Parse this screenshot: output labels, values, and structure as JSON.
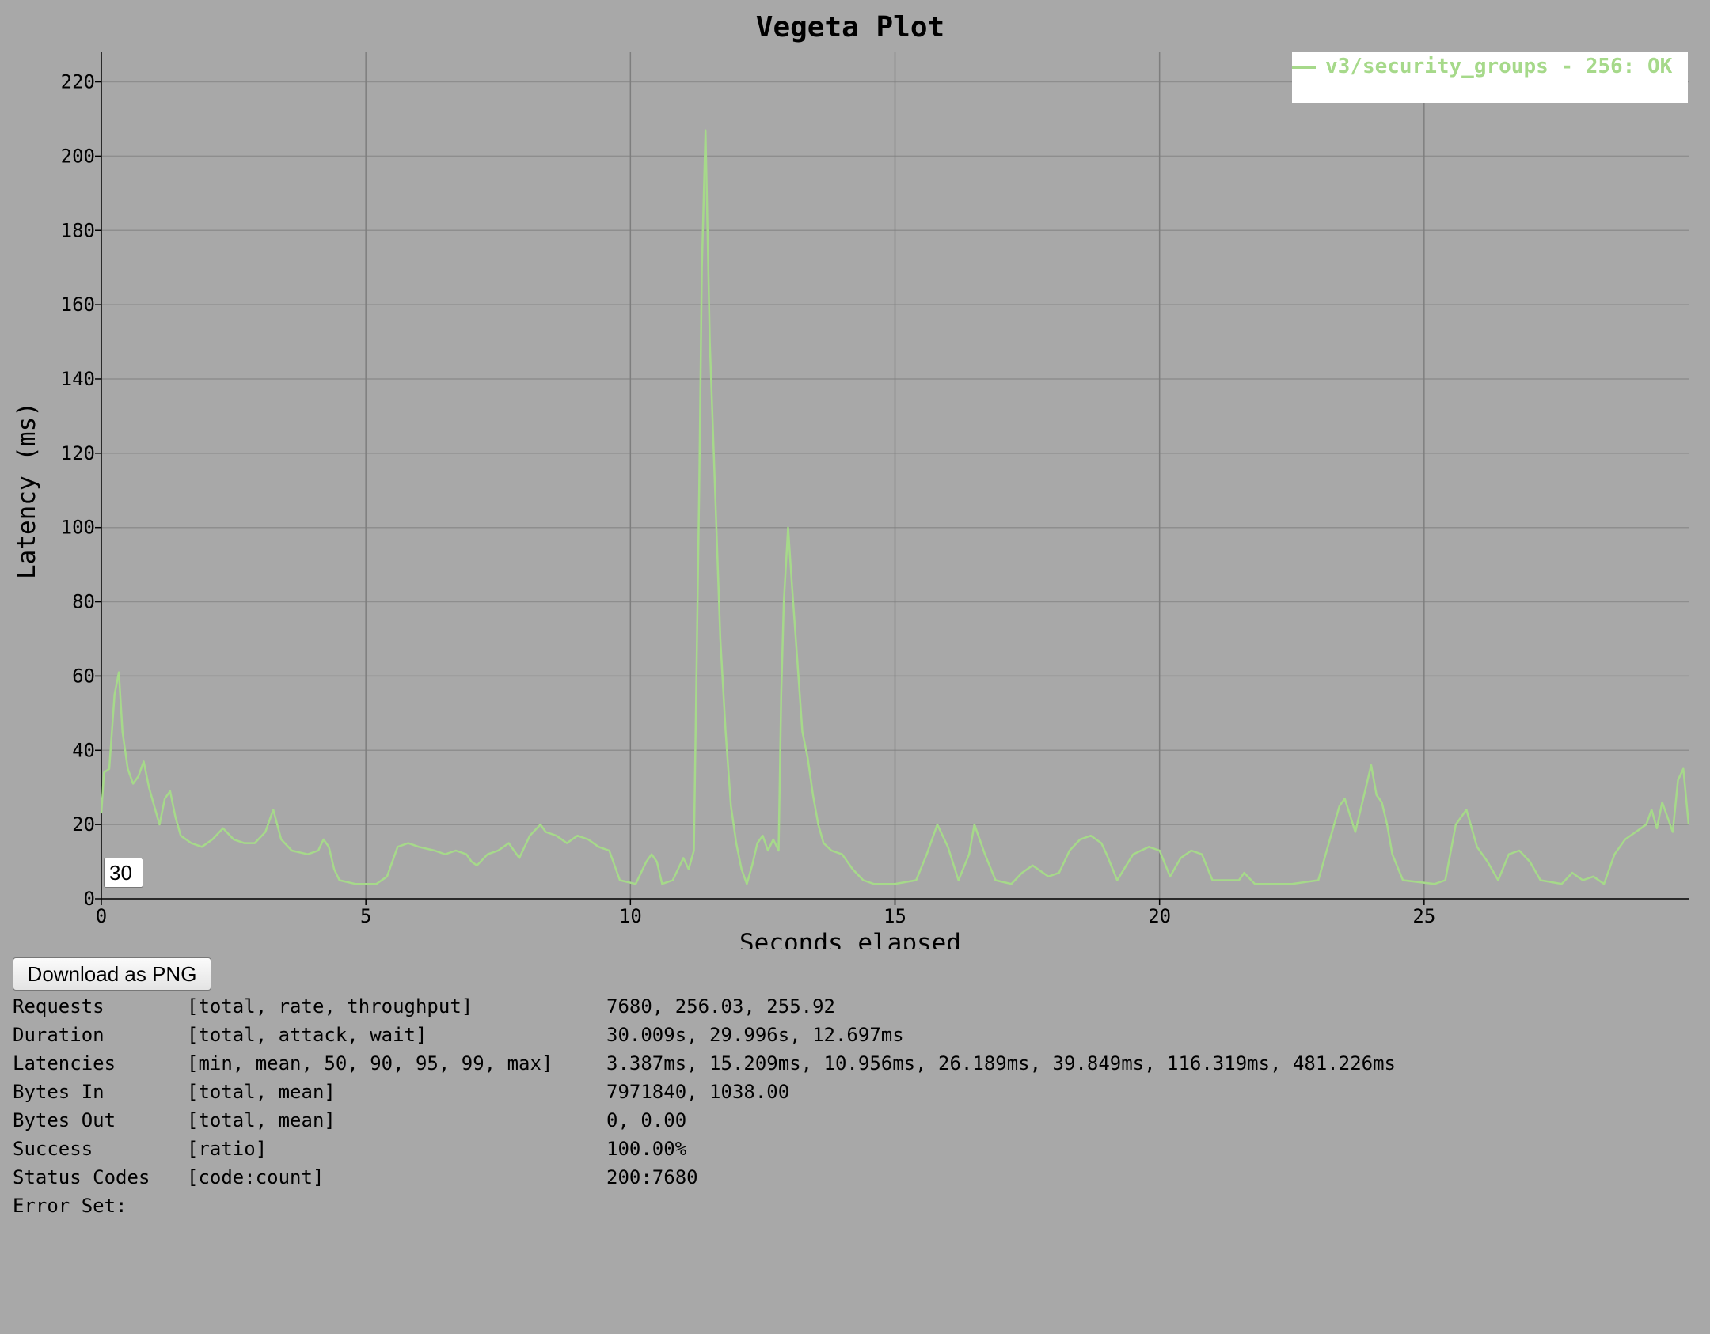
{
  "chart_data": {
    "type": "line",
    "title": "Vegeta Plot",
    "xlabel": "Seconds elapsed",
    "ylabel": "Latency (ms)",
    "xlim": [
      0,
      30
    ],
    "ylim": [
      0,
      228
    ],
    "x_ticks": [
      0,
      5,
      10,
      15,
      20,
      25
    ],
    "y_ticks": [
      0,
      20,
      40,
      60,
      80,
      100,
      120,
      140,
      160,
      180,
      200,
      220
    ],
    "grid": true,
    "legend_position": "top-right",
    "series": [
      {
        "name": "v3/security_groups - 256: OK",
        "color": "#a6d98a",
        "points": [
          [
            0.0,
            23
          ],
          [
            0.05,
            34
          ],
          [
            0.15,
            35
          ],
          [
            0.25,
            55
          ],
          [
            0.33,
            61
          ],
          [
            0.4,
            45
          ],
          [
            0.5,
            35
          ],
          [
            0.6,
            31
          ],
          [
            0.7,
            33
          ],
          [
            0.8,
            37
          ],
          [
            0.9,
            30
          ],
          [
            1.0,
            25
          ],
          [
            1.1,
            20
          ],
          [
            1.2,
            27
          ],
          [
            1.3,
            29
          ],
          [
            1.4,
            22
          ],
          [
            1.5,
            17
          ],
          [
            1.7,
            15
          ],
          [
            1.9,
            14
          ],
          [
            2.1,
            16
          ],
          [
            2.3,
            19
          ],
          [
            2.5,
            16
          ],
          [
            2.7,
            15
          ],
          [
            2.9,
            15
          ],
          [
            3.1,
            18
          ],
          [
            3.25,
            24
          ],
          [
            3.4,
            16
          ],
          [
            3.6,
            13
          ],
          [
            3.9,
            12
          ],
          [
            4.1,
            13
          ],
          [
            4.2,
            16
          ],
          [
            4.3,
            14
          ],
          [
            4.4,
            8
          ],
          [
            4.5,
            5
          ],
          [
            4.8,
            4
          ],
          [
            5.2,
            4
          ],
          [
            5.4,
            6
          ],
          [
            5.6,
            14
          ],
          [
            5.8,
            15
          ],
          [
            6.0,
            14
          ],
          [
            6.3,
            13
          ],
          [
            6.5,
            12
          ],
          [
            6.7,
            13
          ],
          [
            6.9,
            12
          ],
          [
            7.0,
            10
          ],
          [
            7.1,
            9
          ],
          [
            7.3,
            12
          ],
          [
            7.5,
            13
          ],
          [
            7.7,
            15
          ],
          [
            7.9,
            11
          ],
          [
            8.1,
            17
          ],
          [
            8.3,
            20
          ],
          [
            8.4,
            18
          ],
          [
            8.6,
            17
          ],
          [
            8.8,
            15
          ],
          [
            9.0,
            17
          ],
          [
            9.2,
            16
          ],
          [
            9.4,
            14
          ],
          [
            9.6,
            13
          ],
          [
            9.8,
            5
          ],
          [
            10.1,
            4
          ],
          [
            10.3,
            10
          ],
          [
            10.4,
            12
          ],
          [
            10.5,
            10
          ],
          [
            10.6,
            4
          ],
          [
            10.8,
            5
          ],
          [
            11.0,
            11
          ],
          [
            11.1,
            8
          ],
          [
            11.2,
            13
          ],
          [
            11.3,
            110
          ],
          [
            11.35,
            170
          ],
          [
            11.42,
            207
          ],
          [
            11.5,
            150
          ],
          [
            11.6,
            110
          ],
          [
            11.7,
            70
          ],
          [
            11.8,
            45
          ],
          [
            11.9,
            25
          ],
          [
            12.0,
            15
          ],
          [
            12.1,
            8
          ],
          [
            12.2,
            4
          ],
          [
            12.3,
            9
          ],
          [
            12.4,
            15
          ],
          [
            12.5,
            17
          ],
          [
            12.6,
            13
          ],
          [
            12.7,
            16
          ],
          [
            12.8,
            13
          ],
          [
            12.85,
            55
          ],
          [
            12.9,
            80
          ],
          [
            12.98,
            100
          ],
          [
            13.05,
            85
          ],
          [
            13.15,
            65
          ],
          [
            13.25,
            45
          ],
          [
            13.35,
            38
          ],
          [
            13.45,
            28
          ],
          [
            13.55,
            20
          ],
          [
            13.65,
            15
          ],
          [
            13.8,
            13
          ],
          [
            14.0,
            12
          ],
          [
            14.2,
            8
          ],
          [
            14.4,
            5
          ],
          [
            14.6,
            4
          ],
          [
            15.0,
            4
          ],
          [
            15.4,
            5
          ],
          [
            15.6,
            12
          ],
          [
            15.8,
            20
          ],
          [
            16.0,
            14
          ],
          [
            16.2,
            5
          ],
          [
            16.4,
            12
          ],
          [
            16.5,
            20
          ],
          [
            16.7,
            12
          ],
          [
            16.9,
            5
          ],
          [
            17.2,
            4
          ],
          [
            17.4,
            7
          ],
          [
            17.6,
            9
          ],
          [
            17.9,
            6
          ],
          [
            18.1,
            7
          ],
          [
            18.3,
            13
          ],
          [
            18.5,
            16
          ],
          [
            18.7,
            17
          ],
          [
            18.9,
            15
          ],
          [
            19.0,
            12
          ],
          [
            19.2,
            5
          ],
          [
            19.5,
            12
          ],
          [
            19.8,
            14
          ],
          [
            20.0,
            13
          ],
          [
            20.2,
            6
          ],
          [
            20.4,
            11
          ],
          [
            20.6,
            13
          ],
          [
            20.8,
            12
          ],
          [
            21.0,
            5
          ],
          [
            21.5,
            5
          ],
          [
            21.6,
            7
          ],
          [
            21.8,
            4
          ],
          [
            22.5,
            4
          ],
          [
            23.0,
            5
          ],
          [
            23.2,
            15
          ],
          [
            23.4,
            25
          ],
          [
            23.5,
            27
          ],
          [
            23.7,
            18
          ],
          [
            23.9,
            30
          ],
          [
            24.0,
            36
          ],
          [
            24.1,
            28
          ],
          [
            24.2,
            26
          ],
          [
            24.3,
            20
          ],
          [
            24.4,
            12
          ],
          [
            24.6,
            5
          ],
          [
            25.2,
            4
          ],
          [
            25.4,
            5
          ],
          [
            25.6,
            20
          ],
          [
            25.8,
            24
          ],
          [
            26.0,
            14
          ],
          [
            26.1,
            12
          ],
          [
            26.2,
            10
          ],
          [
            26.4,
            5
          ],
          [
            26.6,
            12
          ],
          [
            26.8,
            13
          ],
          [
            27.0,
            10
          ],
          [
            27.2,
            5
          ],
          [
            27.6,
            4
          ],
          [
            27.8,
            7
          ],
          [
            28.0,
            5
          ],
          [
            28.2,
            6
          ],
          [
            28.4,
            4
          ],
          [
            28.6,
            12
          ],
          [
            28.8,
            16
          ],
          [
            29.0,
            18
          ],
          [
            29.2,
            20
          ],
          [
            29.3,
            24
          ],
          [
            29.4,
            19
          ],
          [
            29.5,
            26
          ],
          [
            29.6,
            22
          ],
          [
            29.7,
            18
          ],
          [
            29.8,
            32
          ],
          [
            29.9,
            35
          ],
          [
            30.0,
            20
          ],
          [
            30.1,
            14
          ],
          [
            30.2,
            16
          ],
          [
            30.3,
            18
          ]
        ]
      }
    ]
  },
  "zoom": {
    "value": "30"
  },
  "download": {
    "label": "Download as PNG"
  },
  "stats": [
    {
      "metric": "Requests",
      "fields": "[total, rate, throughput]",
      "values": "7680, 256.03, 255.92"
    },
    {
      "metric": "Duration",
      "fields": "[total, attack, wait]",
      "values": "30.009s, 29.996s, 12.697ms"
    },
    {
      "metric": "Latencies",
      "fields": "[min, mean, 50, 90, 95, 99, max]",
      "values": "3.387ms, 15.209ms, 10.956ms, 26.189ms, 39.849ms, 116.319ms, 481.226ms"
    },
    {
      "metric": "Bytes In",
      "fields": "[total, mean]",
      "values": "7971840, 1038.00"
    },
    {
      "metric": "Bytes Out",
      "fields": "[total, mean]",
      "values": "0, 0.00"
    },
    {
      "metric": "Success",
      "fields": "[ratio]",
      "values": "100.00%"
    },
    {
      "metric": "Status Codes",
      "fields": "[code:count]",
      "values": "200:7680"
    },
    {
      "metric": "Error Set:",
      "fields": "",
      "values": ""
    }
  ]
}
